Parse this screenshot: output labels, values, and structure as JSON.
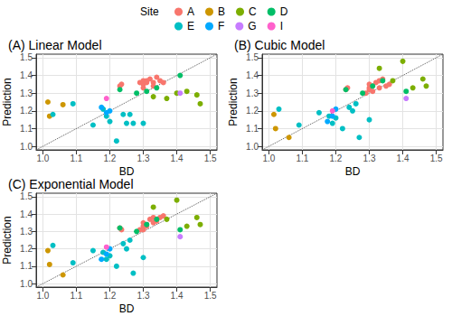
{
  "chart_data": [
    {
      "type": "scatter",
      "title": "(A) Linear Model",
      "x_label": "BD",
      "y_label": "Prediction",
      "legend": "top",
      "legend_title": "Site",
      "grid": true,
      "marker": "circle",
      "xlim": [
        0.98,
        1.52
      ],
      "ylim": [
        0.98,
        1.52
      ],
      "xticks": [
        {
          "value": 1,
          "label": "1.0"
        },
        1.1,
        1.2,
        1.3,
        1.4,
        1.5
      ],
      "yticks": [
        {
          "value": 1,
          "label": "1.0"
        },
        1.1,
        1.2,
        1.3,
        1.4,
        1.5
      ],
      "series": [
        {
          "name": "A",
          "color": "#F8766D",
          "x": [
            1.23,
            1.235,
            1.29,
            1.3,
            1.3,
            1.31,
            1.31,
            1.32,
            1.33,
            1.33,
            1.34,
            1.35,
            1.36,
            1.3
          ],
          "values": [
            1.34,
            1.35,
            1.36,
            1.37,
            1.35,
            1.37,
            1.36,
            1.38,
            1.36,
            1.34,
            1.39,
            1.37,
            1.36,
            1.33
          ]
        },
        {
          "name": "B",
          "color": "#CD9600",
          "x": [
            1.015,
            1.02,
            1.06
          ],
          "values": [
            1.25,
            1.17,
            1.235
          ]
        },
        {
          "name": "C",
          "color": "#7CAE00",
          "x": [
            1.33,
            1.37,
            1.4,
            1.43,
            1.46,
            1.47
          ],
          "values": [
            1.28,
            1.27,
            1.3,
            1.31,
            1.29,
            1.24
          ]
        },
        {
          "name": "D",
          "color": "#00BE67",
          "x": [
            1.23,
            1.28,
            1.31,
            1.34,
            1.41
          ],
          "values": [
            1.32,
            1.3,
            1.31,
            1.33,
            1.4
          ]
        },
        {
          "name": "E",
          "color": "#00BFC4",
          "x": [
            1.03,
            1.09,
            1.15,
            1.18,
            1.19,
            1.2,
            1.22,
            1.24,
            1.25,
            1.26,
            1.27,
            1.3
          ],
          "values": [
            1.18,
            1.24,
            1.12,
            1.21,
            1.17,
            1.14,
            1.03,
            1.18,
            1.13,
            1.18,
            1.13,
            1.13
          ]
        },
        {
          "name": "F",
          "color": "#00A9FF",
          "x": [
            1.175,
            1.19,
            1.2
          ],
          "values": [
            1.22,
            1.19,
            1.2
          ]
        },
        {
          "name": "G",
          "color": "#C77CFF",
          "x": [
            1.41
          ],
          "values": [
            1.3
          ]
        },
        {
          "name": "I",
          "color": "#FF61CC",
          "x": [
            1.19
          ],
          "values": [
            1.27
          ]
        },
        {
          "type": "line",
          "line_style": "dotted",
          "color": "#555555",
          "x": [
            0.98,
            1.52
          ],
          "values": [
            0.98,
            1.52
          ]
        }
      ]
    },
    {
      "type": "scatter",
      "title": "(B) Cubic Model",
      "x_label": "BD",
      "y_label": "Prediction",
      "grid": true,
      "marker": "circle",
      "xlim": [
        0.98,
        1.52
      ],
      "ylim": [
        0.98,
        1.52
      ],
      "xticks": [
        {
          "value": 1,
          "label": "1.0"
        },
        1.1,
        1.2,
        1.3,
        1.4,
        1.5
      ],
      "yticks": [
        {
          "value": 1,
          "label": "1.0"
        },
        1.1,
        1.2,
        1.3,
        1.4,
        1.5
      ],
      "series": [
        {
          "name": "A",
          "color": "#F8766D",
          "x": [
            1.23,
            1.235,
            1.29,
            1.3,
            1.3,
            1.31,
            1.31,
            1.32,
            1.33,
            1.33,
            1.34,
            1.35,
            1.36,
            1.3
          ],
          "values": [
            1.32,
            1.33,
            1.3,
            1.33,
            1.35,
            1.34,
            1.31,
            1.36,
            1.33,
            1.37,
            1.38,
            1.34,
            1.35,
            1.32
          ]
        },
        {
          "name": "B",
          "color": "#CD9600",
          "x": [
            1.015,
            1.02,
            1.06
          ],
          "values": [
            1.18,
            1.1,
            1.05
          ]
        },
        {
          "name": "C",
          "color": "#7CAE00",
          "x": [
            1.33,
            1.37,
            1.4,
            1.43,
            1.46,
            1.47
          ],
          "values": [
            1.44,
            1.37,
            1.48,
            1.33,
            1.38,
            1.34
          ]
        },
        {
          "name": "D",
          "color": "#00BE67",
          "x": [
            1.23,
            1.28,
            1.31,
            1.34,
            1.41
          ],
          "values": [
            1.32,
            1.3,
            1.34,
            1.37,
            1.31
          ]
        },
        {
          "name": "E",
          "color": "#00BFC4",
          "x": [
            1.03,
            1.09,
            1.15,
            1.18,
            1.19,
            1.2,
            1.22,
            1.24,
            1.25,
            1.26,
            1.27,
            1.3
          ],
          "values": [
            1.21,
            1.12,
            1.19,
            1.17,
            1.13,
            1.16,
            1.1,
            1.22,
            1.2,
            1.24,
            1.05,
            1.15
          ]
        },
        {
          "name": "F",
          "color": "#00A9FF",
          "x": [
            1.175,
            1.19,
            1.2
          ],
          "values": [
            1.14,
            1.17,
            1.21
          ]
        },
        {
          "name": "G",
          "color": "#C77CFF",
          "x": [
            1.41
          ],
          "values": [
            1.27
          ]
        },
        {
          "name": "I",
          "color": "#FF61CC",
          "x": [
            1.19
          ],
          "values": [
            1.2
          ]
        },
        {
          "type": "line",
          "line_style": "dotted",
          "color": "#555555",
          "x": [
            0.98,
            1.52
          ],
          "values": [
            0.98,
            1.52
          ]
        }
      ]
    },
    {
      "type": "scatter",
      "title": "(C) Exponential Model",
      "x_label": "BD",
      "y_label": "Prediction",
      "grid": true,
      "marker": "circle",
      "xlim": [
        0.98,
        1.52
      ],
      "ylim": [
        0.98,
        1.52
      ],
      "xticks": [
        {
          "value": 1,
          "label": "1.0"
        },
        1.1,
        1.2,
        1.3,
        1.4,
        1.5
      ],
      "yticks": [
        {
          "value": 1,
          "label": "1.0"
        },
        1.1,
        1.2,
        1.3,
        1.4,
        1.5
      ],
      "series": [
        {
          "name": "A",
          "color": "#F8766D",
          "x": [
            1.23,
            1.235,
            1.29,
            1.3,
            1.3,
            1.31,
            1.31,
            1.32,
            1.33,
            1.33,
            1.34,
            1.35,
            1.36,
            1.3
          ],
          "values": [
            1.32,
            1.31,
            1.31,
            1.33,
            1.35,
            1.34,
            1.33,
            1.37,
            1.35,
            1.38,
            1.36,
            1.38,
            1.39,
            1.31
          ]
        },
        {
          "name": "B",
          "color": "#CD9600",
          "x": [
            1.015,
            1.02,
            1.06
          ],
          "values": [
            1.19,
            1.11,
            1.05
          ]
        },
        {
          "name": "C",
          "color": "#7CAE00",
          "x": [
            1.33,
            1.37,
            1.4,
            1.43,
            1.46,
            1.47
          ],
          "values": [
            1.44,
            1.37,
            1.48,
            1.33,
            1.38,
            1.34
          ]
        },
        {
          "name": "D",
          "color": "#00BE67",
          "x": [
            1.23,
            1.28,
            1.31,
            1.34,
            1.41
          ],
          "values": [
            1.32,
            1.3,
            1.34,
            1.37,
            1.31
          ]
        },
        {
          "name": "E",
          "color": "#00BFC4",
          "x": [
            1.03,
            1.09,
            1.15,
            1.18,
            1.19,
            1.2,
            1.22,
            1.24,
            1.25,
            1.26,
            1.27,
            1.3
          ],
          "values": [
            1.22,
            1.12,
            1.19,
            1.18,
            1.14,
            1.16,
            1.1,
            1.23,
            1.2,
            1.25,
            1.06,
            1.15
          ]
        },
        {
          "name": "F",
          "color": "#00A9FF",
          "x": [
            1.175,
            1.19,
            1.2
          ],
          "values": [
            1.14,
            1.17,
            1.2
          ]
        },
        {
          "name": "G",
          "color": "#C77CFF",
          "x": [
            1.41
          ],
          "values": [
            1.27
          ]
        },
        {
          "name": "I",
          "color": "#FF61CC",
          "x": [
            1.19
          ],
          "values": [
            1.21
          ]
        },
        {
          "type": "line",
          "line_style": "dotted",
          "color": "#555555",
          "x": [
            0.98,
            1.52
          ],
          "values": [
            0.98,
            1.52
          ]
        }
      ]
    }
  ]
}
